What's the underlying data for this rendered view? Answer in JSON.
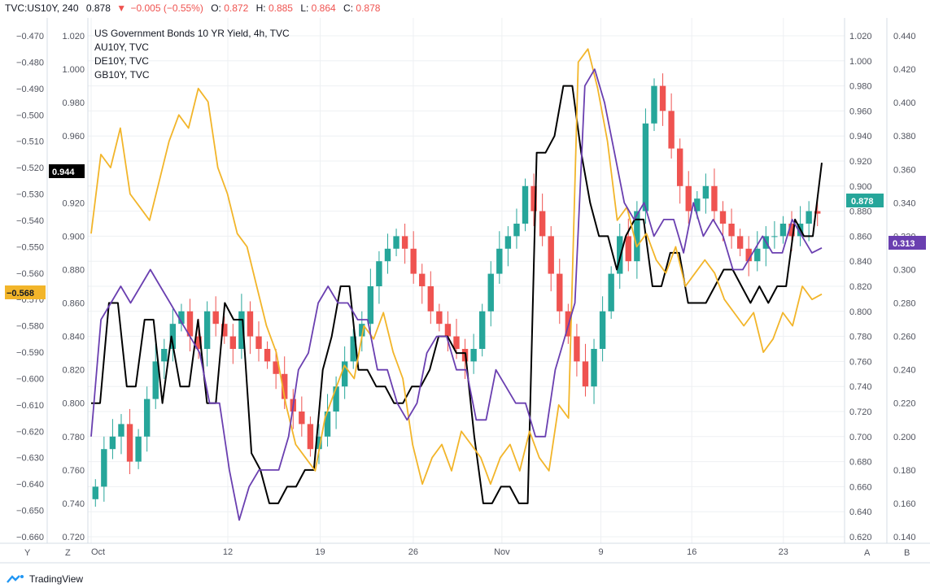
{
  "header": {
    "symbol": "TVC:US10Y, 240",
    "last": "0.878",
    "change": "−0.005 (−0.55%)",
    "o_label": "O:",
    "o_value": "0.872",
    "h_label": "H:",
    "h_value": "0.885",
    "l_label": "L:",
    "l_value": "0.864",
    "c_label": "C:",
    "c_value": "0.878"
  },
  "legend": {
    "main": "US Government Bonds 10 YR Yield, 4h, TVC",
    "items": [
      "AU10Y, TVC",
      "DE10Y, TVC",
      "GB10Y, TVC"
    ]
  },
  "badges": {
    "main_price": "0.878",
    "au_price": "0.944",
    "de_price": "−0.568",
    "gb_price": "0.313"
  },
  "corners": {
    "left_z": "Y",
    "left_zz": "Z",
    "right_a": "A",
    "right_b": "B"
  },
  "brand": "TradingView",
  "colors": {
    "up": "#26a69a",
    "down": "#ef5350",
    "au": "#000000",
    "de": "#f2b52a",
    "gb": "#6a3fb0",
    "main_badge": "#26a69a",
    "gb_badge": "#6a3fb0",
    "de_badge": "#f2b52a",
    "au_badge": "#000000"
  },
  "chart_data": {
    "type": "line",
    "title": "US Government Bonds 10 YR Yield, 4h, TVC",
    "x_ticks": [
      "Oct",
      "12",
      "19",
      "26",
      "Nov",
      "9",
      "16",
      "23"
    ],
    "axis_left_outer": {
      "label_series": "DE10Y",
      "ticks": [
        "−0.470",
        "−0.480",
        "−0.490",
        "−0.500",
        "−0.510",
        "−0.520",
        "−0.530",
        "−0.540",
        "−0.550",
        "−0.560",
        "−0.570",
        "−0.580",
        "−0.590",
        "−0.600",
        "−0.610",
        "−0.620",
        "−0.630",
        "−0.640",
        "−0.650",
        "−0.660"
      ],
      "range": [
        -0.66,
        -0.47
      ]
    },
    "axis_left_inner": {
      "label_series": "AU10Y",
      "ticks": [
        "1.020",
        "1.000",
        "0.980",
        "0.960",
        "0.940",
        "0.920",
        "0.900",
        "0.880",
        "0.860",
        "0.840",
        "0.820",
        "0.800",
        "0.780",
        "0.760",
        "0.740",
        "0.720"
      ],
      "range": [
        0.72,
        1.02
      ]
    },
    "axis_right_inner": {
      "label_series": "US10Y",
      "ticks": [
        "1.020",
        "1.000",
        "0.980",
        "0.960",
        "0.940",
        "0.920",
        "0.900",
        "0.880",
        "0.860",
        "0.840",
        "0.820",
        "0.800",
        "0.780",
        "0.760",
        "0.740",
        "0.720",
        "0.700",
        "0.680",
        "0.660",
        "0.640",
        "0.620"
      ],
      "range": [
        0.62,
        1.02
      ]
    },
    "axis_right_outer": {
      "label_series": "GB10Y",
      "ticks": [
        "0.440",
        "0.420",
        "0.400",
        "0.380",
        "0.360",
        "0.340",
        "0.320",
        "0.300",
        "0.280",
        "0.260",
        "0.240",
        "0.220",
        "0.200",
        "0.180",
        "0.160",
        "0.140"
      ],
      "range": [
        0.14,
        0.44
      ]
    },
    "series": [
      {
        "name": "US10Y",
        "kind": "candles",
        "axis": "right_inner",
        "close": [
          0.66,
          0.69,
          0.7,
          0.71,
          0.68,
          0.7,
          0.73,
          0.76,
          0.77,
          0.79,
          0.8,
          0.78,
          0.77,
          0.8,
          0.79,
          0.78,
          0.77,
          0.8,
          0.78,
          0.77,
          0.76,
          0.75,
          0.73,
          0.72,
          0.71,
          0.69,
          0.7,
          0.72,
          0.74,
          0.76,
          0.78,
          0.79,
          0.82,
          0.84,
          0.85,
          0.86,
          0.85,
          0.83,
          0.82,
          0.8,
          0.79,
          0.78,
          0.77,
          0.76,
          0.77,
          0.8,
          0.83,
          0.85,
          0.86,
          0.87,
          0.9,
          0.88,
          0.86,
          0.83,
          0.8,
          0.78,
          0.76,
          0.74,
          0.77,
          0.8,
          0.83,
          0.86,
          0.84,
          0.88,
          0.95,
          0.98,
          0.96,
          0.93,
          0.9,
          0.88,
          0.89,
          0.9,
          0.88,
          0.87,
          0.86,
          0.85,
          0.84,
          0.85,
          0.86,
          0.86,
          0.87,
          0.86,
          0.87,
          0.88,
          0.878
        ]
      },
      {
        "name": "AU10Y",
        "kind": "line",
        "axis": "left_inner",
        "values": [
          0.8,
          0.8,
          0.86,
          0.86,
          0.81,
          0.81,
          0.85,
          0.85,
          0.8,
          0.84,
          0.81,
          0.81,
          0.85,
          0.8,
          0.8,
          0.86,
          0.85,
          0.85,
          0.77,
          0.76,
          0.74,
          0.74,
          0.75,
          0.75,
          0.76,
          0.76,
          0.82,
          0.84,
          0.87,
          0.87,
          0.82,
          0.82,
          0.81,
          0.81,
          0.8,
          0.8,
          0.81,
          0.81,
          0.82,
          0.84,
          0.84,
          0.83,
          0.83,
          0.78,
          0.74,
          0.74,
          0.75,
          0.75,
          0.74,
          0.74,
          0.95,
          0.95,
          0.96,
          0.99,
          0.99,
          0.95,
          0.92,
          0.9,
          0.9,
          0.88,
          0.9,
          0.91,
          0.91,
          0.87,
          0.87,
          0.89,
          0.89,
          0.86,
          0.86,
          0.86,
          0.87,
          0.88,
          0.88,
          0.87,
          0.86,
          0.87,
          0.86,
          0.87,
          0.87,
          0.91,
          0.9,
          0.9,
          0.944
        ]
      },
      {
        "name": "DE10Y",
        "kind": "line",
        "axis": "left_outer",
        "values": [
          -0.545,
          -0.515,
          -0.52,
          -0.505,
          -0.53,
          -0.535,
          -0.54,
          -0.525,
          -0.51,
          -0.5,
          -0.505,
          -0.49,
          -0.495,
          -0.52,
          -0.53,
          -0.545,
          -0.55,
          -0.565,
          -0.58,
          -0.59,
          -0.61,
          -0.625,
          -0.63,
          -0.635,
          -0.615,
          -0.605,
          -0.595,
          -0.6,
          -0.58,
          -0.585,
          -0.575,
          -0.59,
          -0.6,
          -0.625,
          -0.64,
          -0.63,
          -0.625,
          -0.635,
          -0.62,
          -0.625,
          -0.63,
          -0.64,
          -0.63,
          -0.625,
          -0.635,
          -0.62,
          -0.63,
          -0.635,
          -0.61,
          -0.615,
          -0.48,
          -0.475,
          -0.49,
          -0.51,
          -0.54,
          -0.535,
          -0.55,
          -0.545,
          -0.555,
          -0.56,
          -0.55,
          -0.565,
          -0.56,
          -0.555,
          -0.56,
          -0.57,
          -0.575,
          -0.58,
          -0.575,
          -0.59,
          -0.585,
          -0.575,
          -0.58,
          -0.565,
          -0.57,
          -0.568
        ]
      },
      {
        "name": "GB10Y",
        "kind": "line",
        "axis": "right_outer",
        "values": [
          0.2,
          0.27,
          0.28,
          0.29,
          0.28,
          0.29,
          0.3,
          0.29,
          0.28,
          0.27,
          0.26,
          0.25,
          0.22,
          0.22,
          0.18,
          0.15,
          0.17,
          0.18,
          0.18,
          0.18,
          0.2,
          0.24,
          0.25,
          0.28,
          0.29,
          0.28,
          0.28,
          0.27,
          0.27,
          0.24,
          0.24,
          0.22,
          0.21,
          0.22,
          0.25,
          0.26,
          0.26,
          0.24,
          0.24,
          0.21,
          0.21,
          0.24,
          0.23,
          0.22,
          0.22,
          0.2,
          0.2,
          0.24,
          0.26,
          0.28,
          0.41,
          0.42,
          0.4,
          0.37,
          0.34,
          0.33,
          0.34,
          0.32,
          0.33,
          0.33,
          0.31,
          0.34,
          0.32,
          0.33,
          0.32,
          0.3,
          0.3,
          0.31,
          0.32,
          0.31,
          0.31,
          0.33,
          0.32,
          0.31,
          0.313
        ]
      }
    ]
  }
}
